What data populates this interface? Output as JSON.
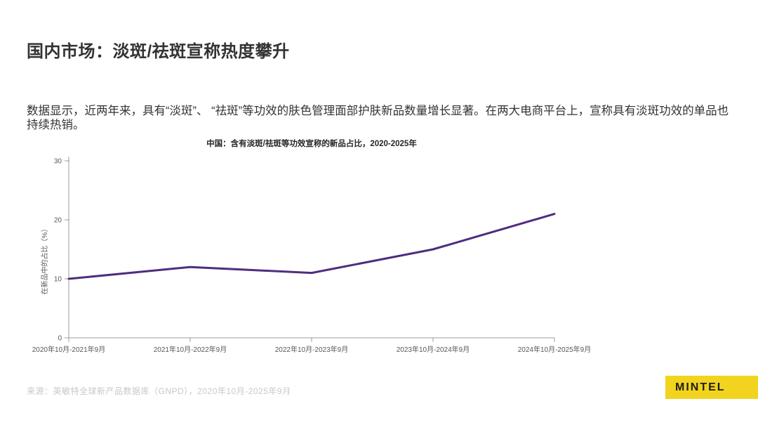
{
  "page": {
    "title": "国内市场：淡斑/祛斑宣称热度攀升",
    "body_text": "数据显示，近两年来，具有“淡斑”、 “祛斑”等功效的肤色管理面部护肤新品数量增长显著。在两大电商平台上，宣称具有淡斑功效的单品也持续热销。",
    "source_note": "来源：英敏特全球新产品数据库（GNPD），2020年10月-2025年9月",
    "logo_text": "MINTEL"
  },
  "colors": {
    "accent_yellow": "#f2d41e",
    "line_purple": "#4F2D7F",
    "axis_gray": "#9e9e9e",
    "text_dark": "#333333",
    "muted_gray": "#c8c8c8"
  },
  "chart_data": {
    "type": "line",
    "title": "中国：含有淡斑/祛斑等功效宣称的新品占比，2020-2025年",
    "categories": [
      "2020年10月-2021年9月",
      "2021年10月-2022年9月",
      "2022年10月-2023年9月",
      "2023年10月-2024年9月",
      "2024年10月-2025年9月"
    ],
    "values": [
      10,
      12,
      11,
      15,
      21
    ],
    "xlabel": "",
    "ylabel": "在新品中的占比（%）",
    "ylim": [
      0,
      30
    ],
    "yticks": [
      0,
      10,
      20,
      30
    ],
    "grid": false,
    "legend": "none",
    "line_color": "#4F2D7F"
  }
}
